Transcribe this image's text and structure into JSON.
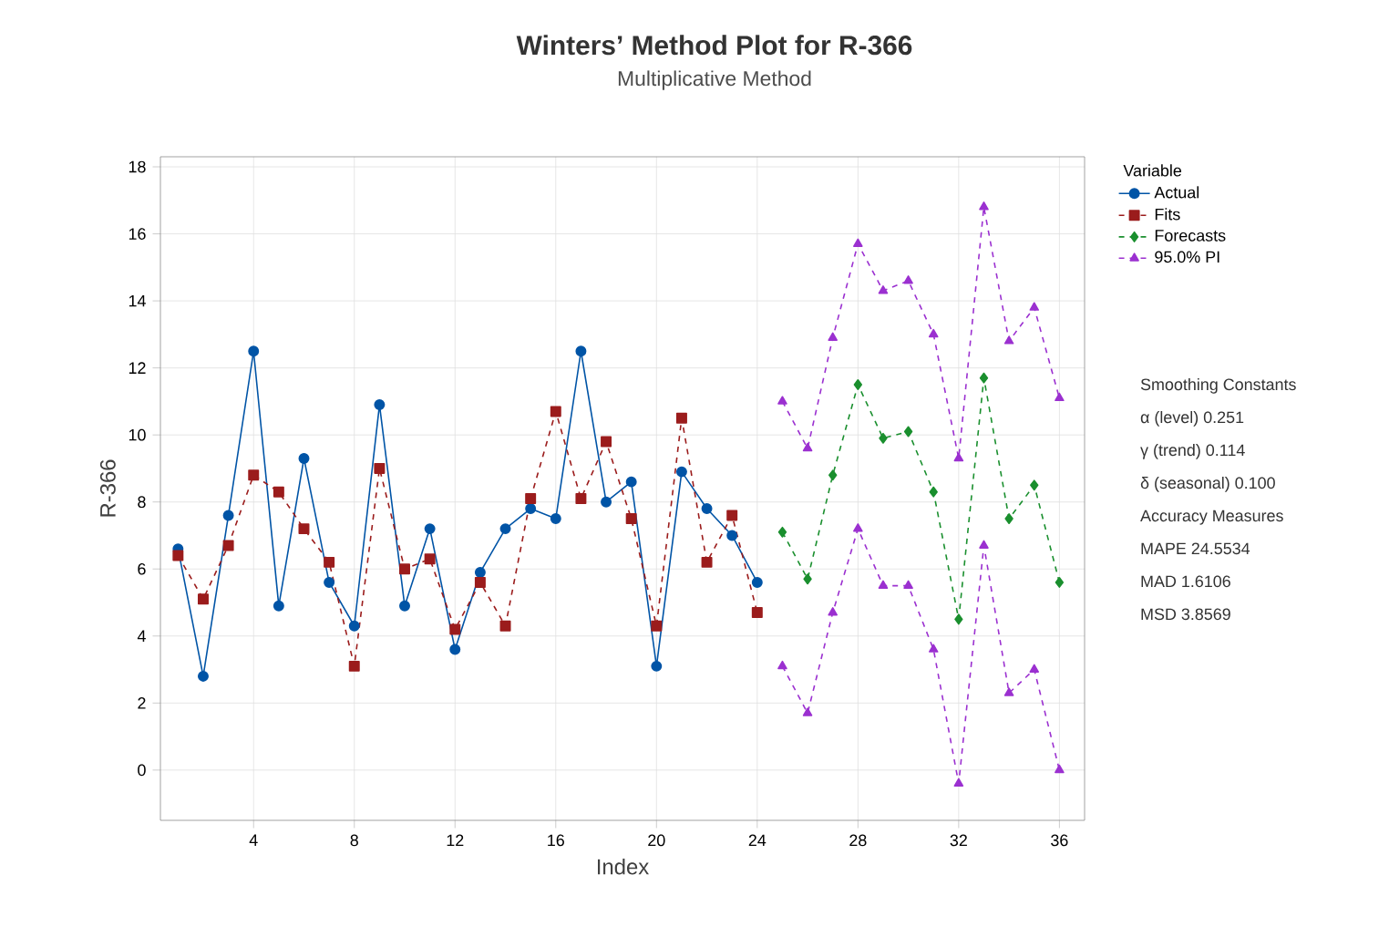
{
  "chart_data": {
    "type": "line",
    "title": "Winters’ Method Plot for R-366",
    "subtitle": "Multiplicative Method",
    "xlabel": "Index",
    "ylabel": "R-366",
    "legend_title": "Variable",
    "xlim": [
      0.3,
      37
    ],
    "ylim": [
      -1.5,
      18.3
    ],
    "xticks": [
      4,
      8,
      12,
      16,
      20,
      24,
      28,
      32,
      36
    ],
    "yticks": [
      0,
      2,
      4,
      6,
      8,
      10,
      12,
      14,
      16,
      18
    ],
    "grid": true,
    "legend": "right",
    "series": [
      {
        "name": "Actual",
        "color": "#0054a6",
        "marker": "circle",
        "line_style": "solid",
        "x": [
          1,
          2,
          3,
          4,
          5,
          6,
          7,
          8,
          9,
          10,
          11,
          12,
          13,
          14,
          15,
          16,
          17,
          18,
          19,
          20,
          21,
          22,
          23,
          24
        ],
        "values": [
          6.6,
          2.8,
          7.6,
          12.5,
          4.9,
          9.3,
          5.6,
          4.3,
          10.9,
          4.9,
          7.2,
          3.6,
          5.9,
          7.2,
          7.8,
          7.5,
          12.5,
          8.0,
          8.6,
          3.1,
          8.9,
          7.8,
          7.0,
          5.6
        ]
      },
      {
        "name": "Fits",
        "color": "#9b1c1c",
        "marker": "square",
        "line_style": "dashed",
        "x": [
          1,
          2,
          3,
          4,
          5,
          6,
          7,
          8,
          9,
          10,
          11,
          12,
          13,
          14,
          15,
          16,
          17,
          18,
          19,
          20,
          21,
          22,
          23,
          24
        ],
        "values": [
          6.4,
          5.1,
          6.7,
          8.8,
          8.3,
          7.2,
          6.2,
          3.1,
          9.0,
          6.0,
          6.3,
          4.2,
          5.6,
          4.3,
          8.1,
          10.7,
          8.1,
          9.8,
          7.5,
          4.3,
          10.5,
          6.2,
          7.6,
          4.7
        ]
      },
      {
        "name": "Forecasts",
        "color": "#1a8f2e",
        "marker": "diamond",
        "line_style": "dashed",
        "x": [
          25,
          26,
          27,
          28,
          29,
          30,
          31,
          32,
          33,
          34,
          35,
          36
        ],
        "values": [
          7.1,
          5.7,
          8.8,
          11.5,
          9.9,
          10.1,
          8.3,
          4.5,
          11.7,
          7.5,
          8.5,
          5.6
        ]
      },
      {
        "name": "95.0% PI",
        "color": "#9b30d0",
        "marker": "triangle",
        "line_style": "dashed",
        "x": [
          25,
          26,
          27,
          28,
          29,
          30,
          31,
          32,
          33,
          34,
          35,
          36
        ],
        "values": [
          11.0,
          9.6,
          12.9,
          15.7,
          14.3,
          14.6,
          13.0,
          9.3,
          16.8,
          12.8,
          13.8,
          11.1
        ]
      },
      {
        "color": "#9b30d0",
        "marker": "triangle",
        "line_style": "dashed",
        "x": [
          25,
          26,
          27,
          28,
          29,
          30,
          31,
          32,
          33,
          34,
          35,
          36
        ],
        "values": [
          3.1,
          1.7,
          4.7,
          7.2,
          5.5,
          5.5,
          3.6,
          -0.4,
          6.7,
          2.3,
          3.0,
          0.0
        ]
      }
    ],
    "annotations": [
      "Smoothing Constants",
      "α (level)   0.251",
      "γ (trend)   0.114",
      "δ (seasonal)   0.100",
      "Accuracy Measures",
      "MAPE   24.5534",
      "MAD   1.6106",
      "MSD   3.8569"
    ]
  }
}
